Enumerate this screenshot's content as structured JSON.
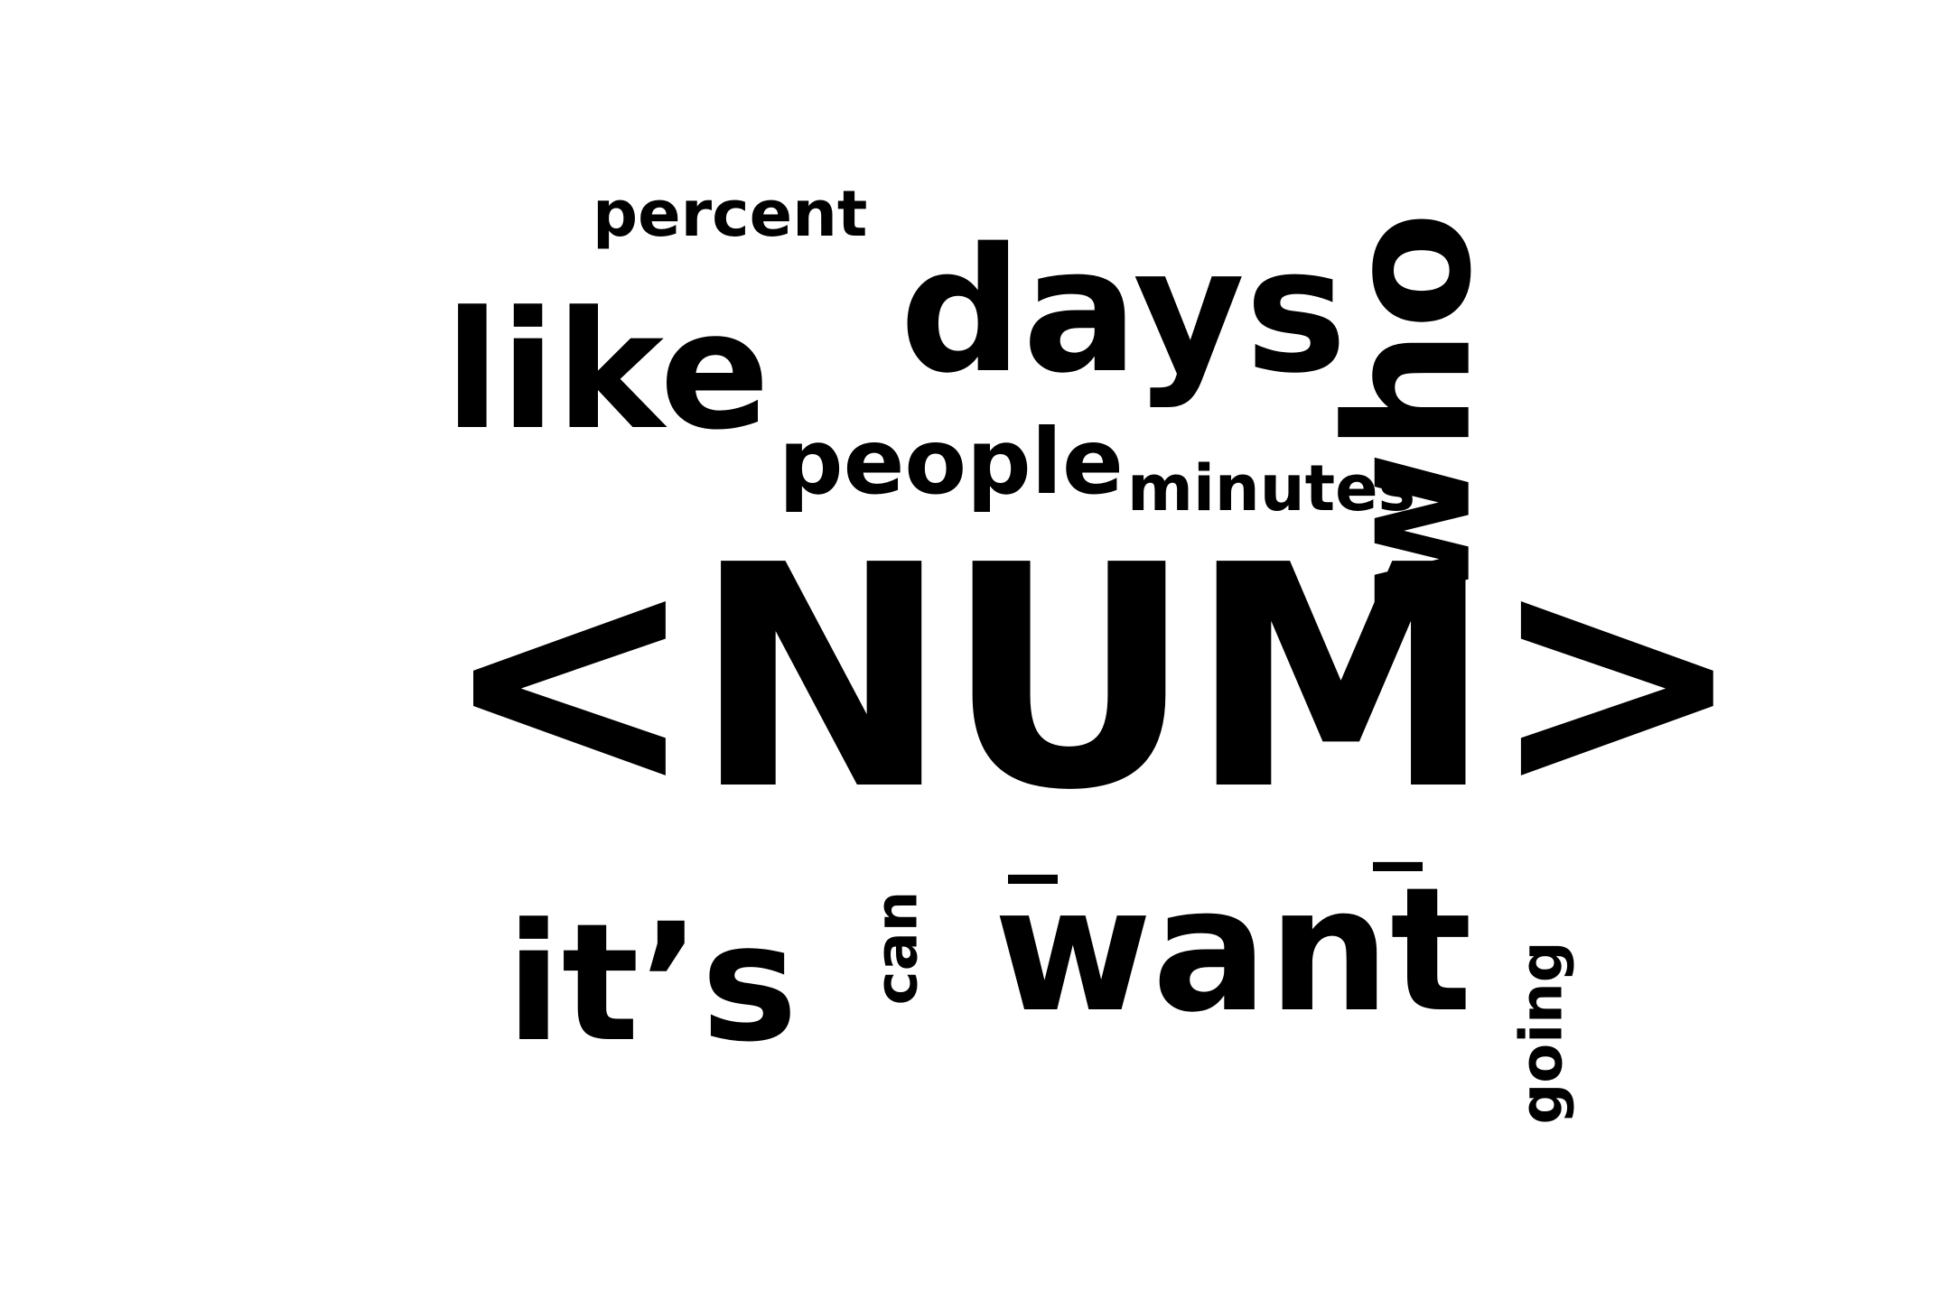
{
  "word_cloud": {
    "words": {
      "num": "<NUM>",
      "days": "days",
      "like": "like",
      "want": "want",
      "its": "it’s",
      "people": "people",
      "minutes": "minutes",
      "percent": "percent",
      "who": "who",
      "can": "can",
      "going": "going",
      "underscore_1": "_",
      "underscore_2": "_"
    }
  },
  "colors": {
    "background": "#ffffff",
    "text": "#000000"
  }
}
